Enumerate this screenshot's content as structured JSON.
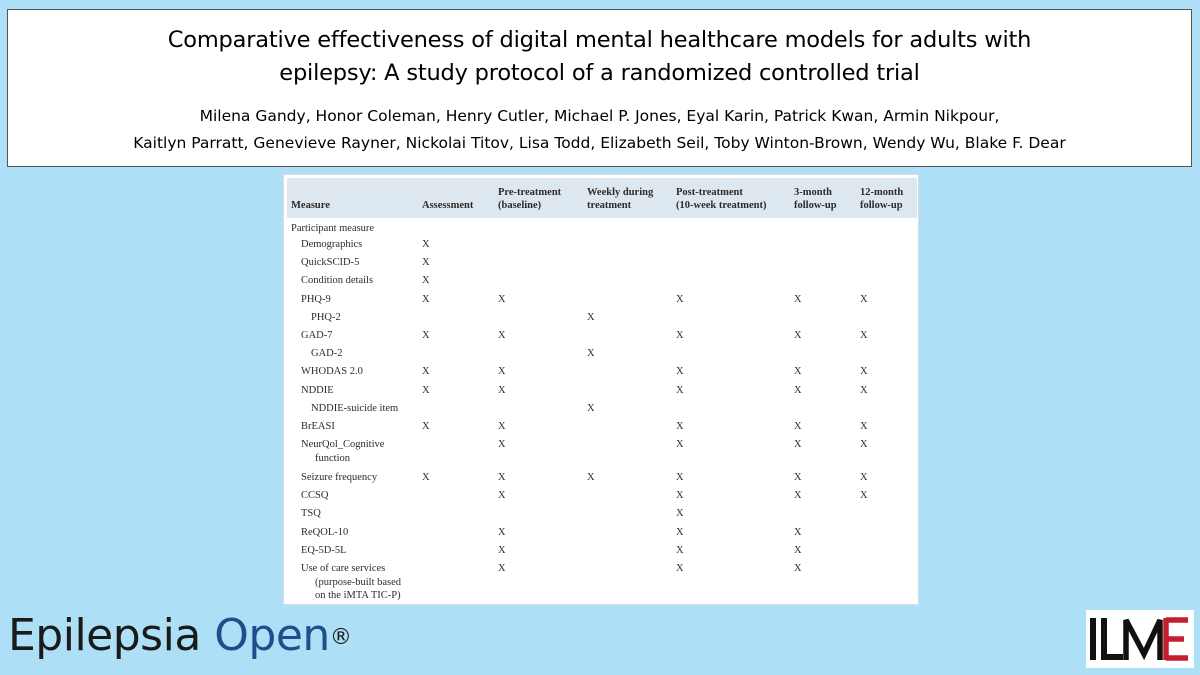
{
  "header": {
    "title_line1": "Comparative effectiveness of digital mental healthcare models for adults with",
    "title_line2": "epilepsy: A study protocol of a randomized controlled trial",
    "authors_line1": "Milena Gandy, Honor Coleman, Henry Cutler, Michael P. Jones, Eyal Karin, Patrick Kwan, Armin Nikpour,",
    "authors_line2": "Kaitlyn Parratt, Genevieve Rayner, Nickolai Titov, Lisa Todd, Elizabeth Seil, Toby Winton-Brown, Wendy Wu, Blake F. Dear"
  },
  "table": {
    "columns": [
      {
        "l1": "Measure",
        "l2": ""
      },
      {
        "l1": "Assessment",
        "l2": ""
      },
      {
        "l1": "Pre-treatment",
        "l2": "(baseline)"
      },
      {
        "l1": "Weekly during",
        "l2": "treatment"
      },
      {
        "l1": "Post-treatment",
        "l2": "(10-week treatment)"
      },
      {
        "l1": "3-month",
        "l2": "follow-up"
      },
      {
        "l1": "12-month",
        "l2": "follow-up"
      }
    ],
    "rows": [
      {
        "l1": "Participant measure",
        "cells": [
          "",
          "",
          "",
          "",
          "",
          ""
        ]
      },
      {
        "l1": "Demographics",
        "cells": [
          "X",
          "",
          "",
          "",
          "",
          ""
        ]
      },
      {
        "l1": "QuickSCID-5",
        "cells": [
          "X",
          "",
          "",
          "",
          "",
          ""
        ]
      },
      {
        "l1": "Condition details",
        "cells": [
          "X",
          "",
          "",
          "",
          "",
          ""
        ]
      },
      {
        "l1": "PHQ-9",
        "cells": [
          "X",
          "X",
          "",
          "X",
          "X",
          "X"
        ]
      },
      {
        "l1": "PHQ-2",
        "cells": [
          "",
          "",
          "X",
          "",
          "",
          ""
        ]
      },
      {
        "l1": "GAD-7",
        "cells": [
          "X",
          "X",
          "",
          "X",
          "X",
          "X"
        ]
      },
      {
        "l1": "GAD-2",
        "cells": [
          "",
          "",
          "X",
          "",
          "",
          ""
        ]
      },
      {
        "l1": "WHODAS 2.0",
        "cells": [
          "X",
          "X",
          "",
          "X",
          "X",
          "X"
        ]
      },
      {
        "l1": "NDDIE",
        "cells": [
          "X",
          "X",
          "",
          "X",
          "X",
          "X"
        ]
      },
      {
        "l1": "NDDIE-suicide item",
        "cells": [
          "",
          "",
          "X",
          "",
          "",
          ""
        ]
      },
      {
        "l1": "BrEASI",
        "cells": [
          "X",
          "X",
          "",
          "X",
          "X",
          "X"
        ]
      },
      {
        "l1": "NeurQol_Cognitive",
        "l2": "function",
        "cells": [
          "",
          "X",
          "",
          "X",
          "X",
          "X"
        ]
      },
      {
        "l1": "Seizure frequency",
        "cells": [
          "X",
          "X",
          "X",
          "X",
          "X",
          "X"
        ]
      },
      {
        "l1": "CCSQ",
        "cells": [
          "",
          "X",
          "",
          "X",
          "X",
          "X"
        ]
      },
      {
        "l1": "TSQ",
        "cells": [
          "",
          "",
          "",
          "X",
          "",
          ""
        ]
      },
      {
        "l1": "ReQOL-10",
        "cells": [
          "",
          "X",
          "",
          "X",
          "X",
          ""
        ]
      },
      {
        "l1": "EQ-5D-5L",
        "cells": [
          "",
          "X",
          "",
          "X",
          "X",
          ""
        ]
      },
      {
        "l1": "Use of care services",
        "l2": "(purpose-built based",
        "l3": "on the iMTA TIC-P)",
        "cells": [
          "",
          "X",
          "",
          "X",
          "X",
          ""
        ]
      }
    ]
  },
  "logo": {
    "part1": "Epilepsia ",
    "part2": "Open",
    "reg": "®",
    "brand_color": "#1f4e8c"
  },
  "ilae_logo": {
    "alt": "ILAE"
  }
}
